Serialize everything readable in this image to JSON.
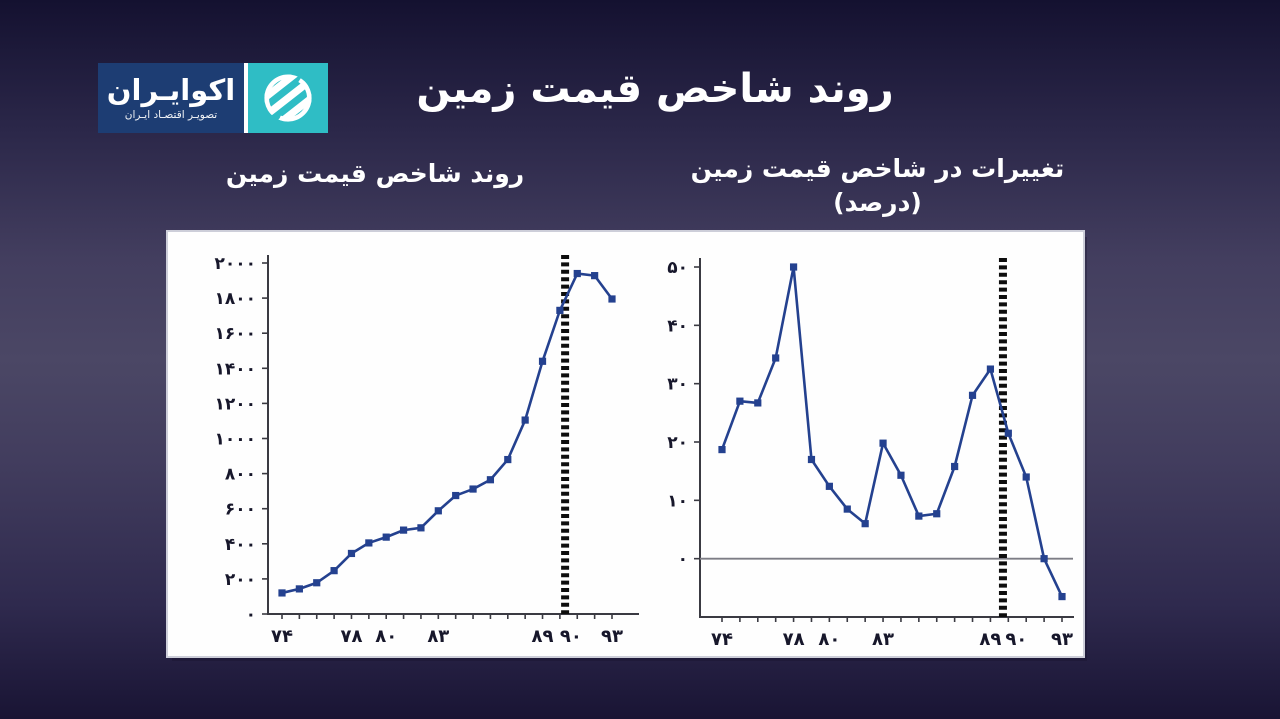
{
  "logo": {
    "name": "اکوایـران",
    "tagline": "تصویـر اقتصـاد ایـران",
    "box_color": "#1d3d73",
    "icon_color": "#2fbdc5"
  },
  "header": {
    "title": "روند شاخص قیمت زمین"
  },
  "panels": {
    "left_subtitle": "روند شاخص قیمت زمین",
    "right_subtitle": "تغییرات در شاخص قیمت زمین",
    "right_subtitle_unit": "(درصد)"
  },
  "chart_data": [
    {
      "type": "line",
      "name": "land-price-index-trend",
      "title": "روند شاخص قیمت زمین",
      "x": [
        74,
        75,
        76,
        77,
        78,
        79,
        80,
        81,
        82,
        83,
        84,
        85,
        86,
        87,
        88,
        89,
        90,
        91,
        92,
        93
      ],
      "values": [
        120,
        143,
        178,
        247,
        345,
        405,
        438,
        478,
        491,
        588,
        675,
        712,
        765,
        880,
        1105,
        1440,
        1730,
        1940,
        1928,
        1795
      ],
      "ylim": [
        0,
        2000
      ],
      "yticks": [
        {
          "v": 0,
          "label": "۰"
        },
        {
          "v": 200,
          "label": "۲۰۰"
        },
        {
          "v": 400,
          "label": "۴۰۰"
        },
        {
          "v": 600,
          "label": "۶۰۰"
        },
        {
          "v": 800,
          "label": "۸۰۰"
        },
        {
          "v": 1000,
          "label": "۱۰۰۰"
        },
        {
          "v": 1200,
          "label": "۱۲۰۰"
        },
        {
          "v": 1400,
          "label": "۱۴۰۰"
        },
        {
          "v": 1600,
          "label": "۱۶۰۰"
        },
        {
          "v": 1800,
          "label": "۱۸۰۰"
        },
        {
          "v": 2000,
          "label": "۲۰۰۰"
        }
      ],
      "xticks": [
        {
          "v": 74,
          "label": "۷۴"
        },
        {
          "v": 78,
          "label": "۷۸"
        },
        {
          "v": 80,
          "label": "۸۰"
        },
        {
          "v": 83,
          "label": "۸۳"
        },
        {
          "v": 89,
          "label": "۸۹"
        },
        {
          "v": 90,
          "label": "۹۰",
          "dx": 11
        },
        {
          "v": 93,
          "label": "۹۳"
        }
      ],
      "zero_line": false,
      "event_line_x": 90.3,
      "line_color": "#24418f",
      "marker": "square",
      "grid": false,
      "legend": "none"
    },
    {
      "type": "line",
      "name": "land-price-index-percent-change",
      "title": "تغییرات در شاخص قیمت زمین",
      "subtitle": "(درصد)",
      "x": [
        74,
        75,
        76,
        77,
        78,
        79,
        80,
        81,
        82,
        83,
        84,
        85,
        86,
        87,
        88,
        89,
        90,
        91,
        92,
        93
      ],
      "values": [
        18.7,
        27,
        26.7,
        34.4,
        50,
        17,
        12.4,
        8.5,
        6,
        19.8,
        14.3,
        7.3,
        7.7,
        15.8,
        28,
        32.5,
        21.5,
        14,
        0,
        -6.5
      ],
      "ylim": [
        -10,
        50
      ],
      "yticks": [
        {
          "v": 0,
          "label": "۰"
        },
        {
          "v": 10,
          "label": "۱۰"
        },
        {
          "v": 20,
          "label": "۲۰"
        },
        {
          "v": 30,
          "label": "۳۰"
        },
        {
          "v": 40,
          "label": "۴۰"
        },
        {
          "v": 50,
          "label": "۵۰"
        }
      ],
      "xticks": [
        {
          "v": 74,
          "label": "۷۴"
        },
        {
          "v": 78,
          "label": "۷۸"
        },
        {
          "v": 80,
          "label": "۸۰"
        },
        {
          "v": 83,
          "label": "۸۳"
        },
        {
          "v": 89,
          "label": "۸۹"
        },
        {
          "v": 90,
          "label": "۹۰",
          "dx": 8
        },
        {
          "v": 93,
          "label": "۹۳"
        }
      ],
      "zero_line": true,
      "event_line_x": 89.7,
      "line_color": "#24418f",
      "marker": "square",
      "grid": false,
      "legend": "none"
    }
  ]
}
